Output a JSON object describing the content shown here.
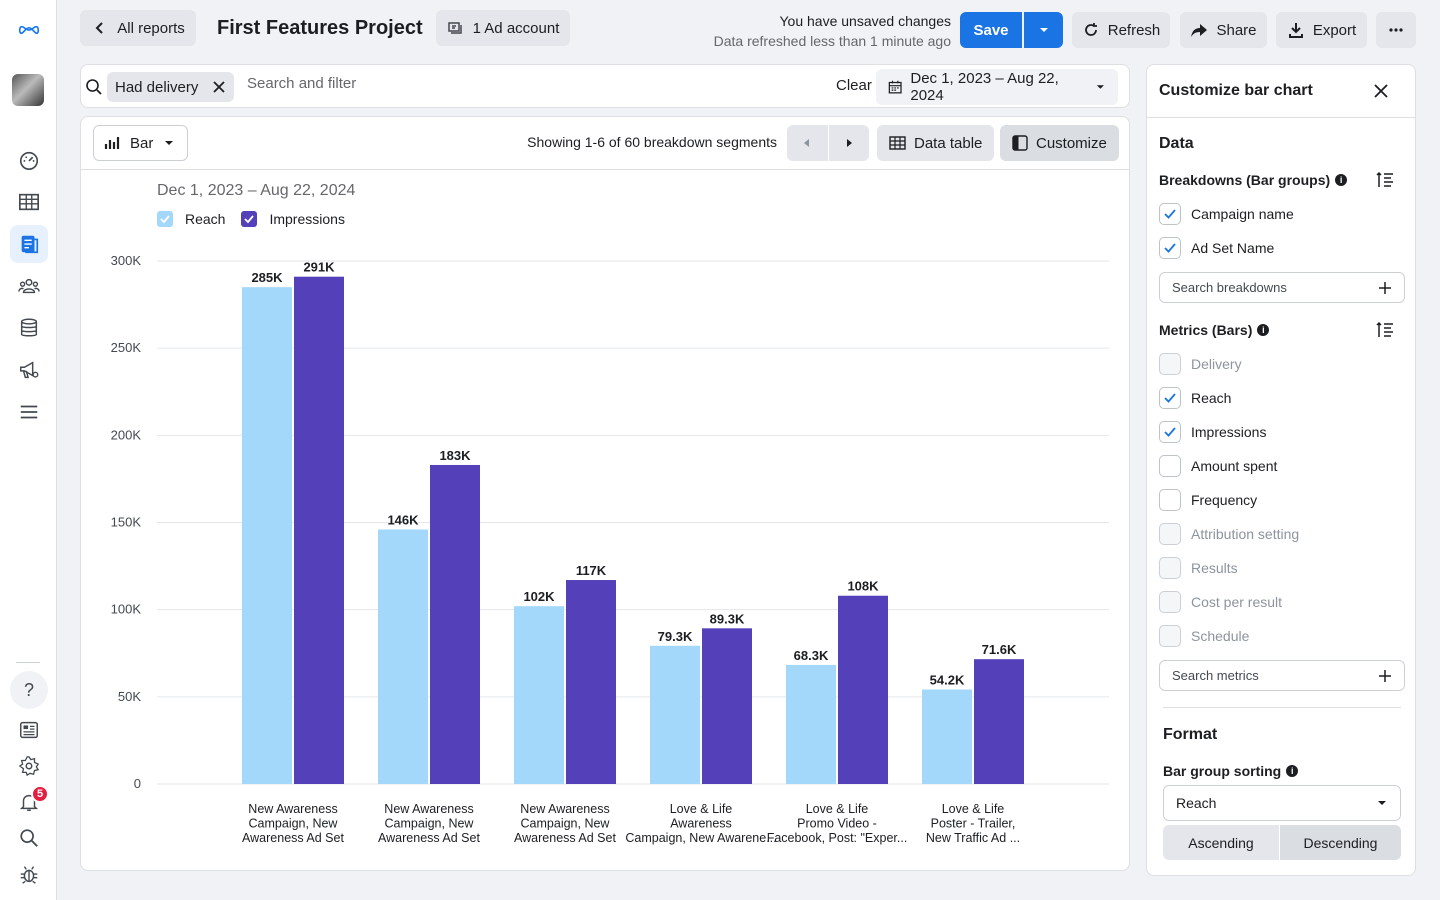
{
  "topbar": {
    "back_label": "All reports",
    "project_title": "First Features Project",
    "ad_account_label": "1 Ad account",
    "unsaved_line1": "You have unsaved changes",
    "unsaved_line2": "Data refreshed less than 1 minute ago",
    "save_label": "Save",
    "refresh_label": "Refresh",
    "share_label": "Share",
    "export_label": "Export"
  },
  "leftnav": {
    "notification_count": "5"
  },
  "filter": {
    "chip_label": "Had delivery",
    "placeholder": "Search and filter",
    "clear_label": "Clear",
    "date_range": "Dec 1, 2023 – Aug 22, 2024"
  },
  "chart_header": {
    "type_label": "Bar",
    "showing_text": "Showing 1-6 of 60 breakdown segments",
    "data_table_label": "Data table",
    "customize_label": "Customize"
  },
  "chart_meta": {
    "date_label": "Dec 1, 2023 – Aug 22, 2024",
    "colors": {
      "reach": "#a4d8fa",
      "impressions": "#5440b8",
      "grid": "#e4e6eb"
    }
  },
  "chart_data": {
    "type": "bar",
    "categories": [
      [
        "New Awareness",
        "Campaign, New",
        "Awareness Ad Set"
      ],
      [
        "New Awareness",
        "Campaign, New",
        "Awareness Ad Set"
      ],
      [
        "New Awareness",
        "Campaign, New",
        "Awareness Ad Set"
      ],
      [
        "Love & Life",
        "Awareness",
        "Campaign, New Awarene..."
      ],
      [
        "Love & Life",
        "Promo Video -",
        "Facebook, Post: \"Exper..."
      ],
      [
        "Love & Life",
        "Poster - Trailer,",
        "New Traffic Ad ..."
      ]
    ],
    "series": [
      {
        "name": "Reach",
        "values": [
          285000,
          146000,
          102000,
          79300,
          68300,
          54200
        ],
        "labels": [
          "285K",
          "146K",
          "102K",
          "79.3K",
          "68.3K",
          "54.2K"
        ]
      },
      {
        "name": "Impressions",
        "values": [
          291000,
          183000,
          117000,
          89300,
          108000,
          71600
        ],
        "labels": [
          "291K",
          "183K",
          "117K",
          "89.3K",
          "108K",
          "71.6K"
        ]
      }
    ],
    "yticks": [
      "0",
      "50K",
      "100K",
      "150K",
      "200K",
      "250K",
      "300K"
    ],
    "ylim": [
      0,
      300000
    ],
    "grid": true,
    "legend": "top-left"
  },
  "panel": {
    "title": "Customize bar chart",
    "data_title": "Data",
    "breakdowns_title": "Breakdowns (Bar groups)",
    "breakdowns": [
      {
        "label": "Campaign name",
        "checked": true
      },
      {
        "label": "Ad Set Name",
        "checked": true
      }
    ],
    "search_breakdowns": "Search breakdowns",
    "metrics_title": "Metrics (Bars)",
    "metrics": [
      {
        "label": "Delivery",
        "checked": false,
        "disabled": true
      },
      {
        "label": "Reach",
        "checked": true,
        "disabled": false
      },
      {
        "label": "Impressions",
        "checked": true,
        "disabled": false
      },
      {
        "label": "Amount spent",
        "checked": false,
        "disabled": false
      },
      {
        "label": "Frequency",
        "checked": false,
        "disabled": false
      },
      {
        "label": "Attribution setting",
        "checked": false,
        "disabled": true
      },
      {
        "label": "Results",
        "checked": false,
        "disabled": true
      },
      {
        "label": "Cost per result",
        "checked": false,
        "disabled": true
      },
      {
        "label": "Schedule",
        "checked": false,
        "disabled": true
      }
    ],
    "search_metrics": "Search metrics",
    "format_title": "Format",
    "sorting_title": "Bar group sorting",
    "sorting_value": "Reach",
    "ascending_label": "Ascending",
    "descending_label": "Descending"
  }
}
